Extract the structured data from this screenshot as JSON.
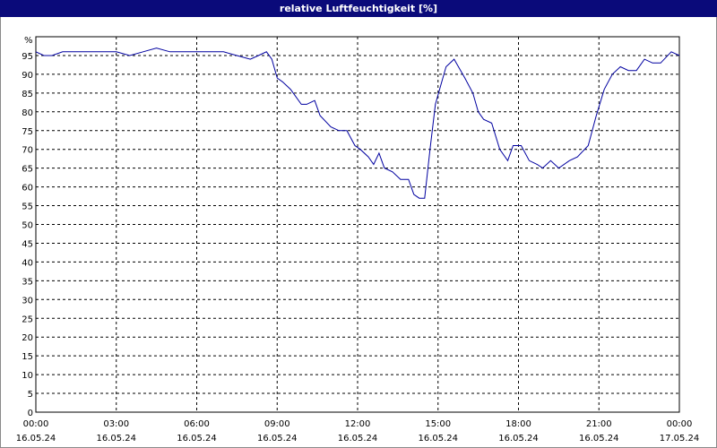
{
  "window": {
    "title": "relative Luftfeuchtigkeit [%]"
  },
  "chart_data": {
    "type": "line",
    "title": "relative Luftfeuchtigkeit [%]",
    "ylabel": "%",
    "xlabel": "",
    "ylim": [
      0,
      100
    ],
    "yticks": [
      0,
      5,
      10,
      15,
      20,
      25,
      30,
      35,
      40,
      45,
      50,
      55,
      60,
      65,
      70,
      75,
      80,
      85,
      90,
      95
    ],
    "xlim": [
      0,
      24
    ],
    "xticks": [
      {
        "t": 0,
        "time": "00:00",
        "date": "16.05.24"
      },
      {
        "t": 3,
        "time": "03:00",
        "date": "16.05.24"
      },
      {
        "t": 6,
        "time": "06:00",
        "date": "16.05.24"
      },
      {
        "t": 9,
        "time": "09:00",
        "date": "16.05.24"
      },
      {
        "t": 12,
        "time": "12:00",
        "date": "16.05.24"
      },
      {
        "t": 15,
        "time": "15:00",
        "date": "16.05.24"
      },
      {
        "t": 18,
        "time": "18:00",
        "date": "16.05.24"
      },
      {
        "t": 21,
        "time": "21:00",
        "date": "16.05.24"
      },
      {
        "t": 24,
        "time": "00:00",
        "date": "17.05.24"
      }
    ],
    "grid": true,
    "line_color": "#0000a0",
    "series": [
      {
        "name": "",
        "x": [
          0,
          0.3,
          0.6,
          1.0,
          1.5,
          2.0,
          2.5,
          3.0,
          3.5,
          4.0,
          4.5,
          5.0,
          5.5,
          6.0,
          6.5,
          7.0,
          7.5,
          8.0,
          8.3,
          8.6,
          8.8,
          9.0,
          9.2,
          9.5,
          9.9,
          10.1,
          10.4,
          10.6,
          11.0,
          11.3,
          11.6,
          11.9,
          12.1,
          12.4,
          12.6,
          12.8,
          13.0,
          13.3,
          13.6,
          13.9,
          14.1,
          14.3,
          14.5,
          14.7,
          14.9,
          15.1,
          15.3,
          15.6,
          16.0,
          16.3,
          16.5,
          16.7,
          17.0,
          17.3,
          17.6,
          17.8,
          18.1,
          18.4,
          18.7,
          18.9,
          19.2,
          19.5,
          19.9,
          20.2,
          20.6,
          20.9,
          21.2,
          21.5,
          21.8,
          22.1,
          22.4,
          22.7,
          23.0,
          23.3,
          23.7,
          24.0
        ],
        "values": [
          96,
          95,
          95,
          96,
          96,
          96,
          96,
          96,
          95,
          96,
          97,
          96,
          96,
          96,
          96,
          96,
          95,
          94,
          95,
          96,
          94,
          89,
          88,
          86,
          82,
          82,
          83,
          79,
          76,
          75,
          75,
          71,
          70,
          68,
          66,
          69,
          65,
          64,
          62,
          62,
          58,
          57,
          57,
          70,
          82,
          87,
          92,
          94,
          89,
          85,
          80,
          78,
          77,
          70,
          67,
          71,
          71,
          67,
          66,
          65,
          67,
          65,
          67,
          68,
          71,
          79,
          86,
          90,
          92,
          91,
          91,
          94,
          93,
          93,
          96,
          95
        ]
      }
    ]
  }
}
